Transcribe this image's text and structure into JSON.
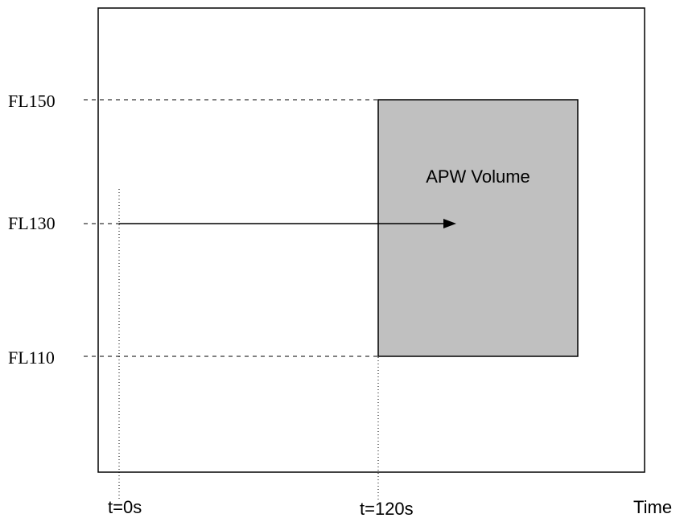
{
  "diagram": {
    "volume_label": "APW Volume",
    "volume_fill": "#c0c0c0",
    "y_labels": {
      "fl150": "FL150",
      "fl130": "FL130",
      "fl110": "FL110"
    },
    "x_labels": {
      "t0": "t=0s",
      "t120": "t=120s",
      "time": "Time"
    }
  }
}
